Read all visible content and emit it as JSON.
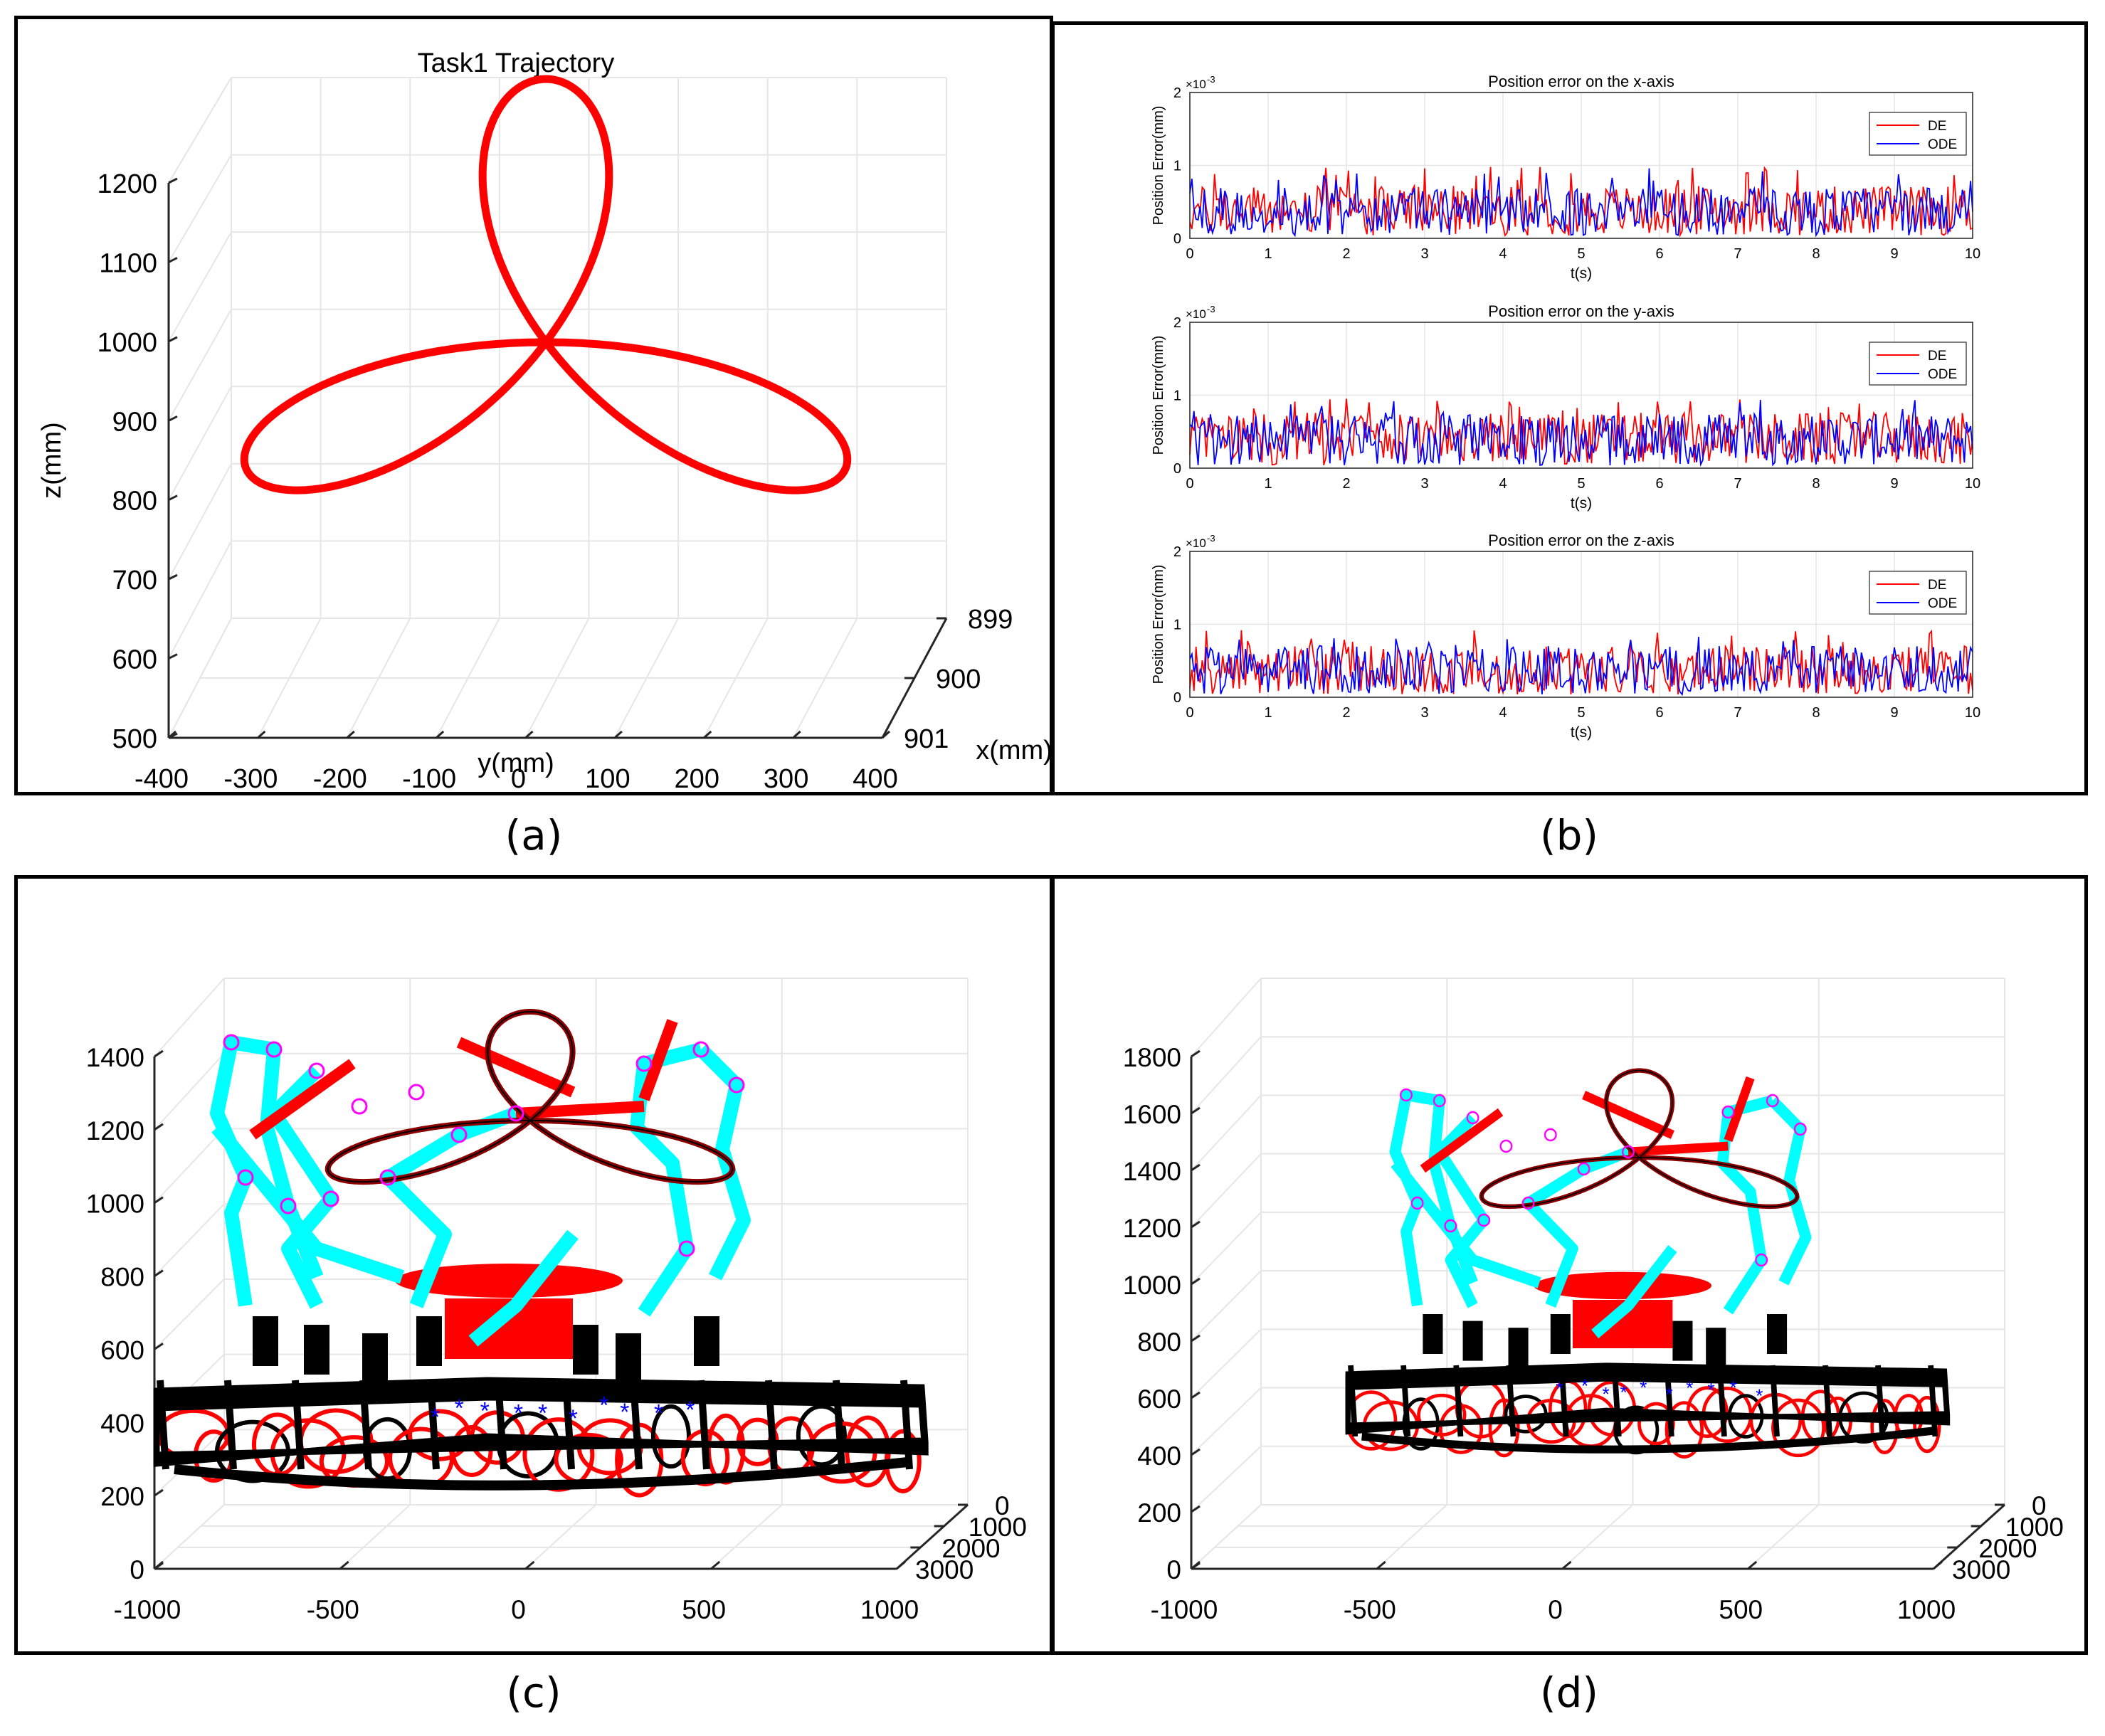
{
  "captions": {
    "a": "(a)",
    "b": "(b)",
    "c": "(c)",
    "d": "(d)"
  },
  "colors": {
    "trajectory": "#ff0000",
    "de": "#ff0000",
    "ode": "#0000ff",
    "cyan": "#00ffff",
    "black": "#000000",
    "magenta": "#ff00ff",
    "grid": "#e6e6e6",
    "axis": "#262626"
  },
  "chart_data": [
    {
      "panel": "a",
      "type": "line",
      "title": "Task1 Trajectory",
      "xlabel": "x(mm)",
      "ylabel": "y(mm)",
      "zlabel": "z(mm)",
      "y_ticks": [
        "-400",
        "-300",
        "-200",
        "-100",
        "0",
        "100",
        "200",
        "300",
        "400"
      ],
      "x_ticks": [
        "899",
        "900",
        "901"
      ],
      "z_ticks": [
        "500",
        "600",
        "700",
        "800",
        "900",
        "1000",
        "1100",
        "1200"
      ],
      "ylim": [
        -400,
        400
      ],
      "zlim": [
        500,
        1200
      ],
      "grid": true,
      "series": [
        {
          "shape": "three-petal rose",
          "center_y": 0,
          "center_z": 1000,
          "radius": 400,
          "x": 900
        }
      ]
    },
    {
      "panel": "b",
      "type": "line",
      "subplots": [
        {
          "title": "Position error on the x-axis",
          "xlabel": "t(s)",
          "ylabel": "Position Error(mm)",
          "y_exponent": "×10",
          "y_exponent_power": "-3",
          "x_ticks": [
            "0",
            "1",
            "2",
            "3",
            "4",
            "5",
            "6",
            "7",
            "8",
            "9",
            "10"
          ],
          "y_ticks": [
            "0",
            "1",
            "2"
          ],
          "xlim": [
            0,
            10
          ],
          "ylim": [
            0,
            0.002
          ],
          "legend": [
            "DE",
            "ODE"
          ],
          "legend_position": "top-right",
          "series": [
            {
              "name": "DE",
              "mean": 0.00038,
              "max": 0.00098
            },
            {
              "name": "ODE",
              "mean": 0.00037,
              "max": 0.00097
            }
          ]
        },
        {
          "title": "Position error on the y-axis",
          "xlabel": "t(s)",
          "ylabel": "Position Error(mm)",
          "y_exponent": "×10",
          "y_exponent_power": "-3",
          "x_ticks": [
            "0",
            "1",
            "2",
            "3",
            "4",
            "5",
            "6",
            "7",
            "8",
            "9",
            "10"
          ],
          "y_ticks": [
            "0",
            "1",
            "2"
          ],
          "xlim": [
            0,
            10
          ],
          "ylim": [
            0,
            0.002
          ],
          "legend": [
            "DE",
            "ODE"
          ],
          "legend_position": "top-right",
          "series": [
            {
              "name": "DE",
              "mean": 0.0004,
              "max": 0.00098
            },
            {
              "name": "ODE",
              "mean": 0.00039,
              "max": 0.00094
            }
          ]
        },
        {
          "title": "Position error on the z-axis",
          "xlabel": "t(s)",
          "ylabel": "Position Error(mm)",
          "y_exponent": "×10",
          "y_exponent_power": "-3",
          "x_ticks": [
            "0",
            "1",
            "2",
            "3",
            "4",
            "5",
            "6",
            "7",
            "8",
            "9",
            "10"
          ],
          "y_ticks": [
            "0",
            "1",
            "2"
          ],
          "xlim": [
            0,
            10
          ],
          "ylim": [
            0,
            0.002
          ],
          "legend": [
            "DE",
            "ODE"
          ],
          "legend_position": "top-right",
          "series": [
            {
              "name": "DE",
              "mean": 0.00037,
              "max": 0.00092
            },
            {
              "name": "ODE",
              "mean": 0.00037,
              "max": 0.00088
            }
          ]
        }
      ]
    },
    {
      "panel": "c",
      "type": "scatter",
      "x_ticks": [
        "-1000",
        "-500",
        "0",
        "500",
        "1000"
      ],
      "y_ticks": [
        "0",
        "1000",
        "2000",
        "3000"
      ],
      "z_ticks": [
        "0",
        "200",
        "400",
        "600",
        "800",
        "1000",
        "1200",
        "1400"
      ],
      "zlim": [
        0,
        1400
      ],
      "grid": true
    },
    {
      "panel": "d",
      "type": "scatter",
      "x_ticks": [
        "-1000",
        "-500",
        "0",
        "500",
        "1000"
      ],
      "y_ticks": [
        "0",
        "1000",
        "2000",
        "3000"
      ],
      "z_ticks": [
        "0",
        "200",
        "400",
        "600",
        "800",
        "1000",
        "1200",
        "1400",
        "1600",
        "1800"
      ],
      "zlim": [
        0,
        1800
      ],
      "grid": true
    }
  ]
}
